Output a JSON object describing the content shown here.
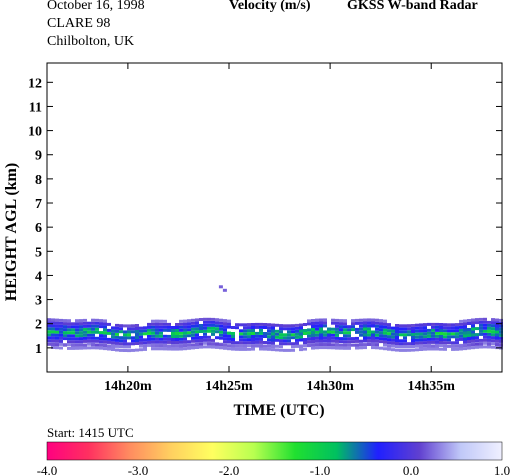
{
  "header": {
    "date": "October  16, 1998",
    "campaign": "CLARE 98",
    "location": "Chilbolton, UK",
    "quantity": "Velocity (m/s)",
    "instrument": "GKSS  W-band Radar",
    "start": "Start: 1415 UTC"
  },
  "chart_data": {
    "type": "heatmap",
    "title": "Velocity (m/s)",
    "xlabel": "TIME (UTC)",
    "ylabel": "HEIGHT AGL (km)",
    "x_ticks": [
      "14h20m",
      "14h25m",
      "14h30m",
      "14h35m"
    ],
    "x_range_minutes_after_1415": [
      1,
      23.5
    ],
    "y_ticks": [
      "1",
      "2",
      "3",
      "4",
      "5",
      "6",
      "7",
      "8",
      "9",
      "10",
      "11",
      "12"
    ],
    "y_range_km": [
      0,
      12.8
    ],
    "grid": false,
    "colorbar": {
      "ticks": [
        "-4.0",
        "-3.0",
        "-2.0",
        "-1.0",
        "0.0",
        "1.0"
      ],
      "range": [
        -4.0,
        1.0
      ],
      "colors": [
        "#ff0080",
        "#ff3060",
        "#ff8c60",
        "#ffd060",
        "#ffff60",
        "#b8ff50",
        "#20e030",
        "#00c060",
        "#2020ff",
        "#6040d0",
        "#c0c8f8",
        "#f0f0ff"
      ]
    },
    "layers": [
      {
        "base_km": 1.05,
        "top_km": 2.05,
        "value_range": [
          -1.2,
          0.3
        ]
      },
      {
        "base_km": 0.9,
        "top_km": 1.05,
        "value_range": [
          0.0,
          0.3
        ]
      },
      {
        "base_km": 3.3,
        "top_km": 3.4,
        "value_range": [
          0.0,
          0.2
        ]
      }
    ]
  }
}
